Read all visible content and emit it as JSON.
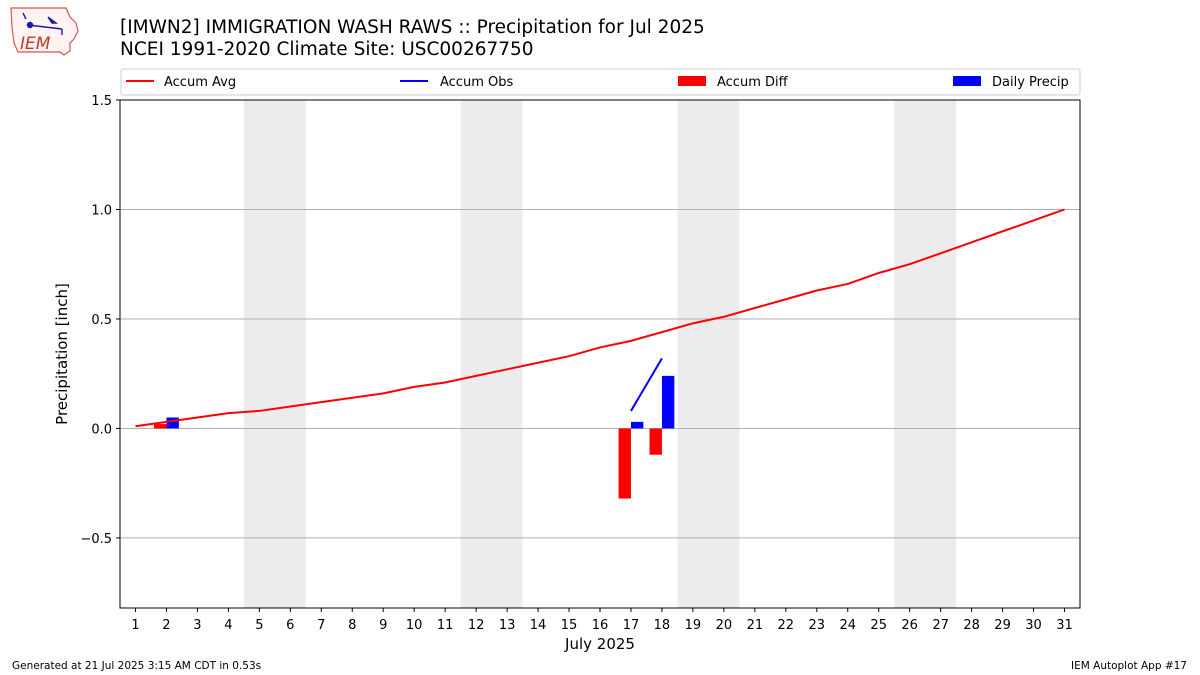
{
  "header": {
    "title_line1": "[IMWN2] IMMIGRATION WASH RAWS :: Precipitation for Jul 2025",
    "title_line2": "NCEI 1991-2020 Climate Site: USC00267750",
    "logo_text": "IEM"
  },
  "footer": {
    "generated": "Generated at 21 Jul 2025 3:15 AM CDT in 0.53s",
    "app": "IEM Autoplot App #17"
  },
  "colors": {
    "avg": "#ff0000",
    "obs": "#0000ff",
    "diff": "#ff0000",
    "daily": "#0000ff",
    "weekend": "#ececec",
    "grid": "#b0b0b0"
  },
  "chart_data": {
    "type": "line",
    "xlabel": "July 2025",
    "ylabel": "Precipitation [inch]",
    "xlim": [
      0.5,
      31.5
    ],
    "ylim": [
      -0.82,
      1.5
    ],
    "yticks": [
      -0.5,
      0.0,
      0.5,
      1.0,
      1.5
    ],
    "ytick_labels": [
      "−0.5",
      "0.0",
      "0.5",
      "1.0",
      "1.5"
    ],
    "xticks": [
      1,
      2,
      3,
      4,
      5,
      6,
      7,
      8,
      9,
      10,
      11,
      12,
      13,
      14,
      15,
      16,
      17,
      18,
      19,
      20,
      21,
      22,
      23,
      24,
      25,
      26,
      27,
      28,
      29,
      30,
      31
    ],
    "grid": "horizontal",
    "legend_position": "top",
    "weekend_spans": [
      [
        4.5,
        6.5
      ],
      [
        11.5,
        13.5
      ],
      [
        18.5,
        20.5
      ],
      [
        25.5,
        27.5
      ]
    ],
    "legend": [
      "Accum Avg",
      "Accum Obs",
      "Accum Diff",
      "Daily Precip"
    ],
    "series": [
      {
        "name": "Accum Avg",
        "type": "line",
        "x": [
          1,
          2,
          3,
          4,
          5,
          6,
          7,
          8,
          9,
          10,
          11,
          12,
          13,
          14,
          15,
          16,
          17,
          18,
          19,
          20,
          21,
          22,
          23,
          24,
          25,
          26,
          27,
          28,
          29,
          30,
          31
        ],
        "values": [
          0.01,
          0.03,
          0.05,
          0.07,
          0.08,
          0.1,
          0.12,
          0.14,
          0.16,
          0.19,
          0.21,
          0.24,
          0.27,
          0.3,
          0.33,
          0.37,
          0.4,
          0.44,
          0.48,
          0.51,
          0.55,
          0.59,
          0.63,
          0.66,
          0.71,
          0.75,
          0.8,
          0.85,
          0.9,
          0.95,
          1.0
        ]
      },
      {
        "name": "Accum Obs",
        "type": "line",
        "x": [
          17,
          18
        ],
        "values": [
          0.08,
          0.32
        ]
      },
      {
        "name": "Accum Diff",
        "type": "bar",
        "x": [
          2,
          17,
          18
        ],
        "values": [
          0.02,
          -0.32,
          -0.12
        ]
      },
      {
        "name": "Daily Precip",
        "type": "bar",
        "x": [
          2,
          17,
          18
        ],
        "values": [
          0.05,
          0.03,
          0.24
        ]
      }
    ]
  }
}
